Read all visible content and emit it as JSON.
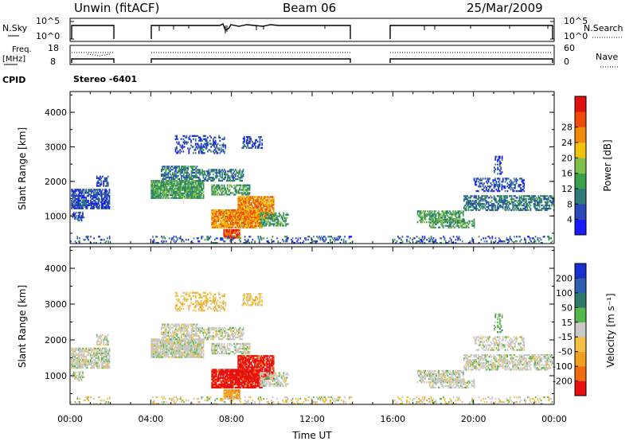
{
  "header": {
    "station": "Unwin (fitACF)",
    "beam": "Beam 06",
    "date": "25/Mar/2009"
  },
  "top_panels": {
    "nsky_label": "N.Sky",
    "nsearch_label": "N.Search",
    "nsky_ticks": [
      "10^5",
      "10^0"
    ],
    "nsearch_ticks": [
      "10^5",
      "10^0"
    ],
    "freq_label_1": "Freq.",
    "freq_label_2": "[MHz]",
    "freq_ticks": [
      "18",
      "8"
    ],
    "nave_label": "Nave",
    "nave_ticks": [
      "60",
      "0"
    ],
    "cpid_label": "CPID",
    "cpid_value": "Stereo -6401"
  },
  "chart_data": [
    {
      "type": "heatmap",
      "name": "power",
      "ylabel": "Slant Range [km]",
      "xlabel": "",
      "ylim": [
        200,
        4600
      ],
      "xlim": [
        0,
        24
      ],
      "yticks": [
        "1000",
        "2000",
        "3000",
        "4000"
      ],
      "colorbar_label": "Power [dB]",
      "colorbar_ticks": [
        "4",
        "8",
        "12",
        "16",
        "20",
        "24",
        "28"
      ],
      "colorbar_range": [
        0,
        32
      ],
      "colors": [
        "#1a1aff",
        "#2b46b8",
        "#2e7a78",
        "#3aa04a",
        "#7ec04a",
        "#f2c20a",
        "#f08a0a",
        "#f04a0a",
        "#e01010"
      ],
      "data_gaps_hours": [
        [
          2.0,
          4.0
        ],
        [
          14.0,
          16.0
        ]
      ]
    },
    {
      "type": "heatmap",
      "name": "velocity",
      "ylabel": "Slant Range [km]",
      "xlabel": "Time UT",
      "ylim": [
        200,
        4600
      ],
      "xlim": [
        0,
        24
      ],
      "yticks": [
        "1000",
        "2000",
        "3000",
        "4000"
      ],
      "xticks": [
        "00:00",
        "04:00",
        "08:00",
        "12:00",
        "16:00",
        "20:00",
        "00:00"
      ],
      "colorbar_label": "Velocity [m s⁻¹]",
      "colorbar_ticks": [
        "200",
        "100",
        "50",
        "15",
        "-15",
        "-50",
        "-100",
        "-200"
      ],
      "colors": [
        "#1a2fd0",
        "#2f5fb0",
        "#2e7a6a",
        "#54b84a",
        "#c8c8c8",
        "#f2c040",
        "#f0a020",
        "#f06a10",
        "#e81010"
      ],
      "data_gaps_hours": [
        [
          2.0,
          4.0
        ],
        [
          14.0,
          16.0
        ]
      ]
    }
  ]
}
